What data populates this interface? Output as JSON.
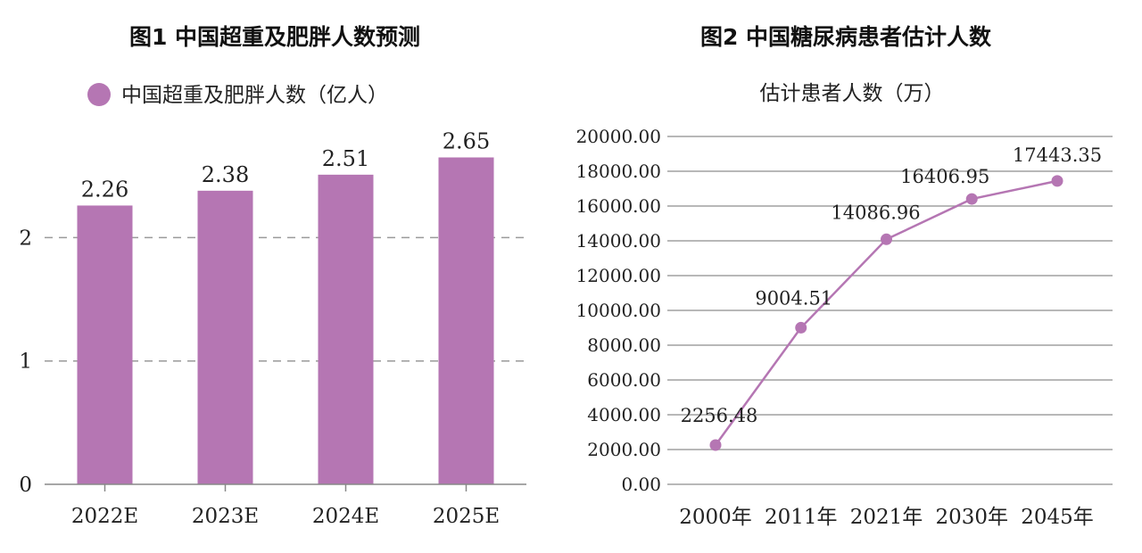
{
  "chart_data": [
    {
      "type": "bar",
      "title": "图1  中国超重及肥胖人数预测",
      "legend": [
        "中国超重及肥胖人数（亿人）"
      ],
      "categories": [
        "2022E",
        "2023E",
        "2024E",
        "2025E"
      ],
      "values": [
        2.26,
        2.38,
        2.51,
        2.65
      ],
      "value_labels": [
        "2.26",
        "2.38",
        "2.51",
        "2.65"
      ],
      "y_ticks": [
        "0",
        "1",
        "2"
      ],
      "ylim": [
        0,
        2.95
      ],
      "grid": "dashed horizontal",
      "legend_position": "top-left",
      "color": "#b576b3"
    },
    {
      "type": "line",
      "title": "图2  中国糖尿病患者估计人数",
      "series_title": "估计患者人数（万）",
      "categories": [
        "2000年",
        "2011年",
        "2021年",
        "2030年",
        "2045年"
      ],
      "values": [
        2256.48,
        9004.51,
        14086.96,
        16406.95,
        17443.35
      ],
      "value_labels": [
        "2256.48",
        "9004.51",
        "14086.96",
        "16406.95",
        "17443.35"
      ],
      "y_ticks": [
        "0.00",
        "2000.00",
        "4000.00",
        "6000.00",
        "8000.00",
        "10000.00",
        "12000.00",
        "14000.00",
        "16000.00",
        "18000.00",
        "20000.00"
      ],
      "ylim": [
        0,
        20000
      ],
      "grid": "solid horizontal",
      "color": "#b576b3"
    }
  ]
}
